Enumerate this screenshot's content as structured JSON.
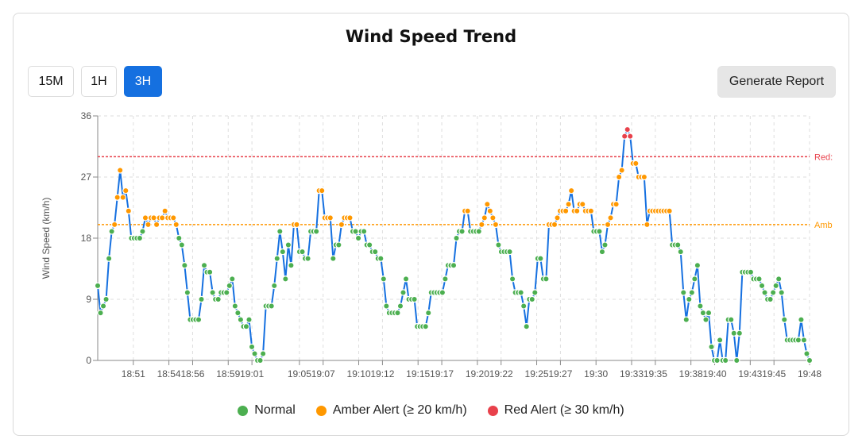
{
  "title": "Wind Speed Trend",
  "range_buttons": [
    {
      "label": "15M",
      "active": false
    },
    {
      "label": "1H",
      "active": false
    },
    {
      "label": "3H",
      "active": true
    }
  ],
  "report_button": "Generate Report",
  "colors": {
    "line": "#1570e0",
    "normal": "#4caf50",
    "amber": "#ff9800",
    "red": "#e8414b",
    "grid": "#dedede"
  },
  "chart_data": {
    "type": "line",
    "ylabel": "Wind Speed (km/h)",
    "ylim": [
      0,
      36
    ],
    "yticks": [
      0,
      9,
      18,
      27,
      36
    ],
    "xlim": [
      "18:48",
      "19:48"
    ],
    "xticks": [
      "18:51",
      "18:54",
      "18:56",
      "18:59",
      "19:01",
      "19:05",
      "19:07",
      "19:10",
      "19:12",
      "19:15",
      "19:17",
      "19:20",
      "19:22",
      "19:25",
      "19:27",
      "19:30",
      "19:33",
      "19:35",
      "19:38",
      "19:40",
      "19:43",
      "19:45",
      "19:48"
    ],
    "grid": true,
    "thresholds": [
      {
        "label": "Red:",
        "value": 30,
        "color": "#e8414b"
      },
      {
        "label": "Amb",
        "value": 20,
        "color": "#ff9800"
      }
    ],
    "legend": [
      {
        "label": "Normal",
        "color": "#4caf50"
      },
      {
        "label": "Amber Alert (≥ 20 km/h)",
        "color": "#ff9800"
      },
      {
        "label": "Red Alert (≥ 30 km/h)",
        "color": "#e8414b"
      }
    ],
    "legend_position": "bottom",
    "series": [
      {
        "x_minute_offsets_start": "18:48",
        "values": [
          11,
          7,
          8,
          9,
          15,
          19,
          20,
          24,
          28,
          24,
          25,
          22,
          18,
          18,
          18,
          18,
          19,
          21,
          20,
          21,
          21,
          20,
          21,
          21,
          22,
          21,
          21,
          21,
          20,
          18,
          17,
          14,
          10,
          6,
          6,
          6,
          6,
          9,
          14,
          13,
          13,
          10,
          9,
          9,
          10,
          10,
          10,
          11,
          12,
          8,
          7,
          6,
          5,
          5,
          6,
          2,
          1,
          0,
          0,
          1,
          8,
          8,
          8,
          11,
          15,
          19,
          16,
          12,
          17,
          14,
          20,
          20,
          16,
          16,
          15,
          15,
          19,
          19,
          19,
          25,
          25,
          21,
          21,
          21,
          15,
          17,
          17,
          20,
          21,
          21,
          21,
          19,
          19,
          18,
          19,
          19,
          17,
          17,
          16,
          16,
          15,
          15,
          12,
          8,
          7,
          7,
          7,
          7,
          8,
          10,
          12,
          9,
          9,
          9,
          5,
          5,
          5,
          5,
          7,
          10,
          10,
          10,
          10,
          10,
          12,
          14,
          14,
          14,
          18,
          19,
          19,
          22,
          22,
          19,
          19,
          19,
          19,
          20,
          21,
          23,
          22,
          21,
          20,
          17,
          16,
          16,
          16,
          16,
          12,
          10,
          10,
          10,
          8,
          5,
          9,
          9,
          10,
          15,
          15,
          12,
          12,
          20,
          20,
          20,
          21,
          22,
          22,
          22,
          23,
          25,
          22,
          22,
          23,
          23,
          22,
          22,
          22,
          19,
          19,
          19,
          16,
          17,
          20,
          21,
          23,
          23,
          27,
          28,
          33,
          34,
          33,
          29,
          29,
          27,
          27,
          27,
          20,
          22,
          22,
          22,
          22,
          22,
          22,
          22,
          22,
          17,
          17,
          17,
          16,
          10,
          6,
          9,
          10,
          12,
          14,
          8,
          7,
          6,
          7,
          2,
          0,
          0,
          3,
          0,
          0,
          6,
          6,
          4,
          0,
          4,
          13,
          13,
          13,
          13,
          12,
          12,
          12,
          11,
          10,
          9,
          9,
          10,
          11,
          12,
          10,
          6,
          3,
          3,
          3,
          3,
          3,
          6,
          3,
          1,
          0
        ]
      }
    ]
  }
}
